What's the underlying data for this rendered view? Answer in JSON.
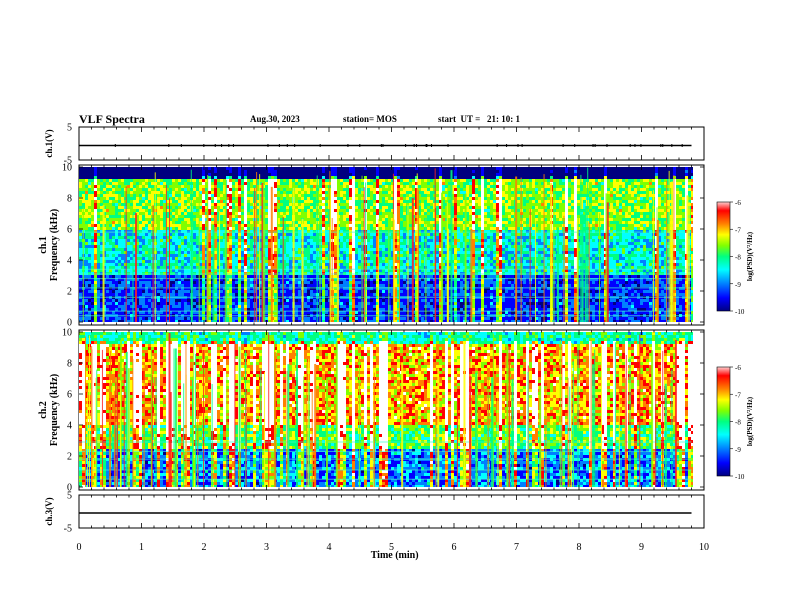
{
  "header": {
    "title": "VLF Spectra",
    "date": "Aug.30, 2023",
    "station": "station= MOS",
    "start_ut": "start  UT =   21: 10: 1"
  },
  "chart_data": [
    {
      "type": "line",
      "panel": "ch1-waveform",
      "ylabel": "ch.1(V)",
      "ylim": [
        -5,
        5
      ],
      "yticks": [
        "5",
        "-5"
      ],
      "x": [
        0,
        9.8
      ],
      "y": [
        0,
        0
      ]
    },
    {
      "type": "heatmap",
      "panel": "ch1-spectrogram",
      "ylabel_top": "ch.1",
      "ylabel": "Frequency  (kHz)",
      "ylim": [
        0,
        10
      ],
      "yticks": [
        "0",
        "2",
        "4",
        "6",
        "8",
        "10"
      ],
      "xlim": [
        0,
        9.8
      ],
      "colorbar": {
        "label": "log(PSD)(V²/Hz)",
        "range": [
          -10,
          -6
        ],
        "ticks": [
          "-6",
          "-7",
          "-8",
          "-9",
          "-10"
        ]
      }
    },
    {
      "type": "heatmap",
      "panel": "ch2-spectrogram",
      "ylabel_top": "ch.2",
      "ylabel": "Frequency  (kHz)",
      "ylim": [
        0,
        10
      ],
      "yticks": [
        "0",
        "2",
        "4",
        "6",
        "8",
        "10"
      ],
      "xlim": [
        0,
        9.8
      ],
      "colorbar": {
        "label": "log(PSD)(V²/Hz)",
        "range": [
          -10,
          -6
        ],
        "ticks": [
          "-6",
          "-7",
          "-8",
          "-9",
          "-10"
        ]
      }
    },
    {
      "type": "line",
      "panel": "ch3-waveform",
      "ylabel": "ch.3(V)",
      "ylim": [
        -5,
        5
      ],
      "yticks": [
        "5",
        "-5"
      ],
      "x": [
        0,
        9.8
      ],
      "y": [
        0,
        0
      ]
    }
  ],
  "xaxis": {
    "label": "Time  (min)",
    "range": [
      0,
      10
    ],
    "ticks": [
      "0",
      "1",
      "2",
      "3",
      "4",
      "5",
      "6",
      "7",
      "8",
      "9",
      "10"
    ]
  },
  "colors": {
    "scale": [
      "#000080",
      "#0000ff",
      "#0080ff",
      "#00ffff",
      "#00ff80",
      "#80ff00",
      "#ffff00",
      "#ff8000",
      "#ff0000",
      "#ffffff"
    ],
    "trace": "#000000"
  }
}
